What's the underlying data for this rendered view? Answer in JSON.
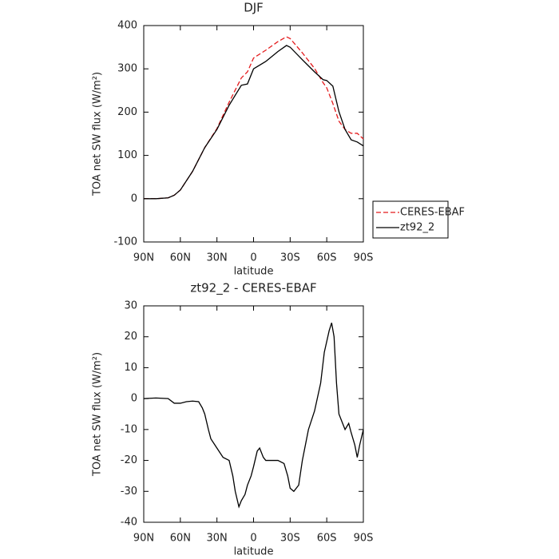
{
  "chart_data": [
    {
      "type": "line",
      "title": "DJF",
      "xlabel": "latitude",
      "ylabel": "TOA net SW flux (W/m²)",
      "xlim": [
        90,
        -90
      ],
      "xticks": [
        {
          "value": 90,
          "label": "90N"
        },
        {
          "value": 60,
          "label": "60N"
        },
        {
          "value": 30,
          "label": "30N"
        },
        0,
        {
          "value": -30,
          "label": "30S"
        },
        {
          "value": -60,
          "label": "60S"
        },
        {
          "value": -90,
          "label": "90S"
        }
      ],
      "ylim": [
        -100,
        400
      ],
      "yticks": [
        -100,
        0,
        100,
        200,
        300,
        400
      ],
      "legend": "right",
      "x": [
        90,
        80,
        70,
        65,
        60,
        50,
        40,
        30,
        20,
        10,
        5,
        0,
        -10,
        -20,
        -27,
        -30,
        -40,
        -50,
        -57,
        -60,
        -65,
        -70,
        -75,
        -80,
        -85,
        -90
      ],
      "series": [
        {
          "name": "CERES-EBAF",
          "color": "#e41a1c",
          "dash": true,
          "values": [
            0,
            0,
            2,
            8,
            20,
            63,
            118,
            162,
            223,
            279,
            293,
            325,
            343,
            363,
            374,
            370,
            337,
            301,
            268,
            256,
            220,
            179,
            160,
            151,
            151,
            138
          ]
        },
        {
          "name": "zt92_2",
          "color": "#000000",
          "dash": false,
          "values": [
            0,
            0,
            2,
            8,
            20,
            63,
            118,
            160,
            216,
            262,
            265,
            300,
            317,
            340,
            354,
            350,
            321,
            293,
            275,
            273,
            260,
            201,
            160,
            136,
            131,
            122
          ]
        }
      ]
    },
    {
      "type": "line",
      "title": "zt92_2 - CERES-EBAF",
      "xlabel": "latitude",
      "ylabel": "TOA net SW flux (W/m²)",
      "xlim": [
        90,
        -90
      ],
      "xticks": [
        {
          "value": 90,
          "label": "90N"
        },
        {
          "value": 60,
          "label": "60N"
        },
        {
          "value": 30,
          "label": "30N"
        },
        0,
        {
          "value": -30,
          "label": "30S"
        },
        {
          "value": -60,
          "label": "60S"
        },
        {
          "value": -90,
          "label": "90S"
        }
      ],
      "ylim": [
        -40,
        30
      ],
      "yticks": [
        -40,
        -30,
        -20,
        -10,
        0,
        10,
        20,
        30
      ],
      "x": [
        90,
        80,
        70,
        65,
        60,
        55,
        50,
        45,
        42,
        40,
        37,
        35,
        30,
        25,
        20,
        17,
        15,
        12,
        10,
        7,
        5,
        2,
        0,
        -3,
        -5,
        -8,
        -10,
        -15,
        -20,
        -25,
        -28,
        -30,
        -33,
        -37,
        -40,
        -45,
        -50,
        -55,
        -58,
        -62,
        -64,
        -66,
        -68,
        -70,
        -72,
        -75,
        -78,
        -80,
        -83,
        -85,
        -87,
        -90
      ],
      "series": [
        {
          "name": "zt92_2 - CERES-EBAF",
          "color": "#000000",
          "dash": false,
          "values": [
            0,
            0.2,
            0,
            -1.5,
            -1.5,
            -1,
            -0.8,
            -1,
            -3,
            -5,
            -10,
            -13,
            -16,
            -19,
            -20,
            -25,
            -30,
            -35,
            -33,
            -31,
            -28,
            -25,
            -22,
            -17,
            -16,
            -19,
            -20,
            -20,
            -20,
            -21,
            -25,
            -29,
            -30,
            -28,
            -20,
            -10,
            -4,
            5,
            15,
            22,
            24.5,
            20,
            5,
            -5,
            -7,
            -10,
            -8,
            -11,
            -15,
            -19,
            -15,
            -10
          ]
        }
      ]
    }
  ]
}
